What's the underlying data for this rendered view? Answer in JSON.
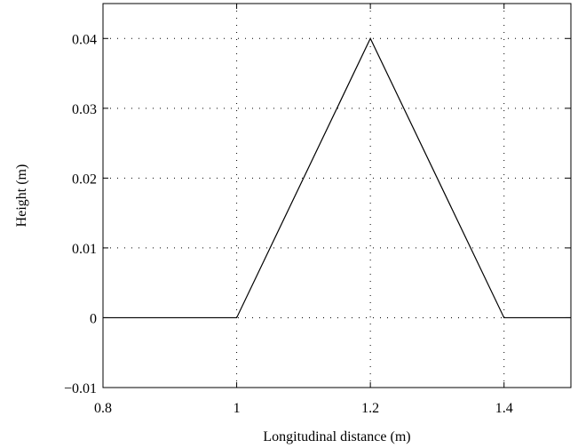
{
  "chart_data": {
    "type": "line",
    "title": "",
    "xlabel": "Longitudinal distance (m)",
    "ylabel": "Height (m)",
    "xlim": [
      0.8,
      1.5
    ],
    "ylim": [
      -0.01,
      0.045
    ],
    "grid": true,
    "grid_style": "dotted",
    "x_ticks": [
      0.8,
      1.0,
      1.2,
      1.4
    ],
    "x_tick_labels": [
      "0.8",
      "1",
      "1.2",
      "1.4"
    ],
    "y_ticks": [
      -0.01,
      0,
      0.01,
      0.02,
      0.03,
      0.04
    ],
    "y_tick_labels": [
      "−0.01",
      "0",
      "0.01",
      "0.02",
      "0.03",
      "0.04"
    ],
    "series": [
      {
        "x": [
          0.8,
          1.0,
          1.2,
          1.4,
          1.5
        ],
        "y": [
          0,
          0,
          0.04,
          0,
          0
        ],
        "color": "#000000"
      }
    ]
  }
}
